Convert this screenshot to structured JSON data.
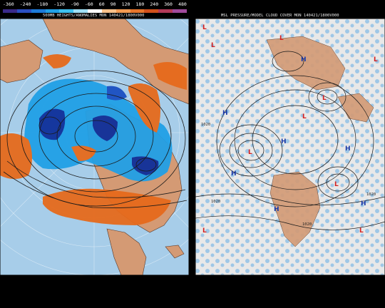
{
  "left_map": {
    "title": "500MB HEIGHTS/ANOMALIES MON 140421/1800V000",
    "scale_labels": [
      "-360",
      "-240",
      "-180",
      "-120",
      "-90",
      "-60",
      "60",
      "90",
      "120",
      "180",
      "240",
      "360",
      "480"
    ],
    "scale_colors": [
      "#3a2a8a",
      "#2a4fc2",
      "#1c7ad8",
      "#21a0e6",
      "#3ec1ef",
      "#9fe0f5",
      "#ffffff",
      "#f7c08a",
      "#f29a52",
      "#e6752c",
      "#d1501b",
      "#b23a58",
      "#a04a9c"
    ],
    "colors": {
      "ocean": "#a7cde9",
      "land": "#d49a74",
      "neg": "#1e78d8",
      "neg_dark": "#0e2f9a",
      "pos": "#e66a1c"
    }
  },
  "right_map": {
    "title": "MSL PRESSURE/MODEL CLOUD COVER MON 140421/1800V000",
    "labels": {
      "high": "H",
      "low": "L"
    },
    "isobars": [
      "1020",
      "1020",
      "1020",
      "1020"
    ],
    "colors": {
      "ocean": "#9fc7e6",
      "cloud": "#f2f2f2",
      "land": "#d49a74",
      "high": "#1a3aa8",
      "low": "#d42020"
    }
  }
}
